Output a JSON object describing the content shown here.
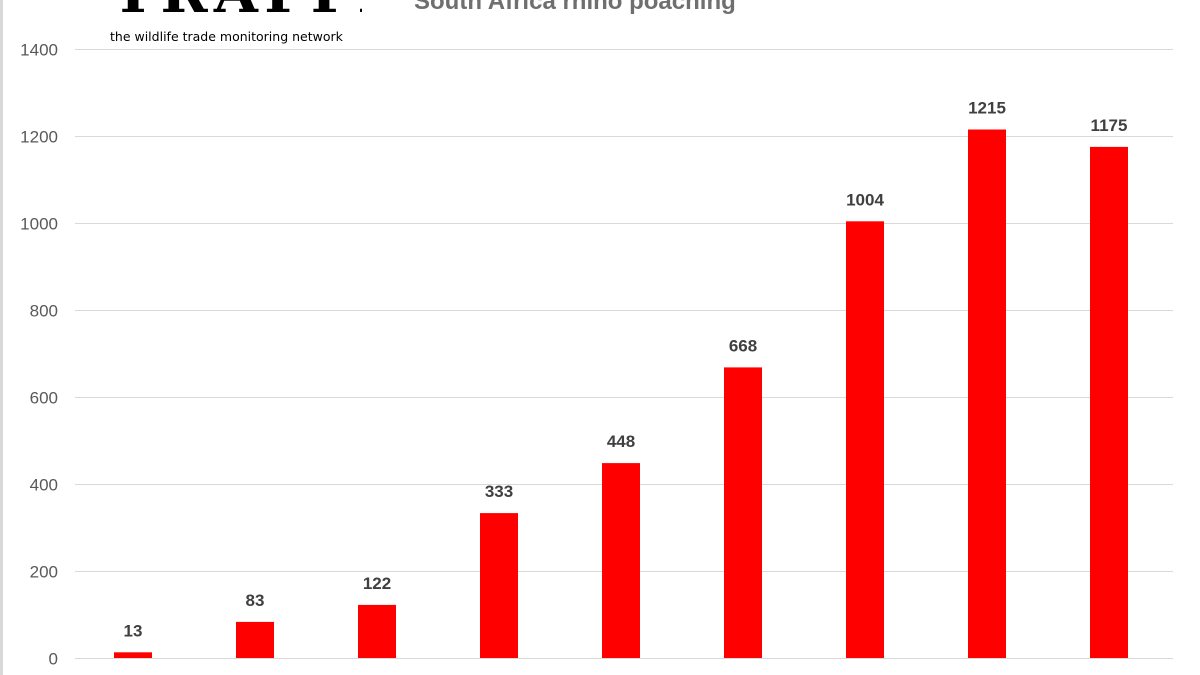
{
  "logo": {
    "wordmark": "TRAFFIC",
    "registered_mark": "®",
    "tagline": "the wildlife trade monitoring network"
  },
  "chart_data": {
    "type": "bar",
    "title": "South Africa rhino poaching",
    "xlabel": "",
    "ylabel": "",
    "ylim": [
      0,
      1400
    ],
    "yticks": [
      0,
      200,
      400,
      600,
      800,
      1000,
      1200,
      1400
    ],
    "categories": [
      "",
      "",
      "",
      "",
      "",
      "",
      "",
      "",
      ""
    ],
    "values": [
      13,
      83,
      122,
      333,
      448,
      668,
      1004,
      1215,
      1175
    ],
    "data_labels": [
      "13",
      "83",
      "122",
      "333",
      "448",
      "668",
      "1004",
      "1215",
      "1175"
    ],
    "grid": true,
    "legend": "none",
    "bar_color": "#ff0000",
    "grid_color": "#d9d9d9"
  }
}
